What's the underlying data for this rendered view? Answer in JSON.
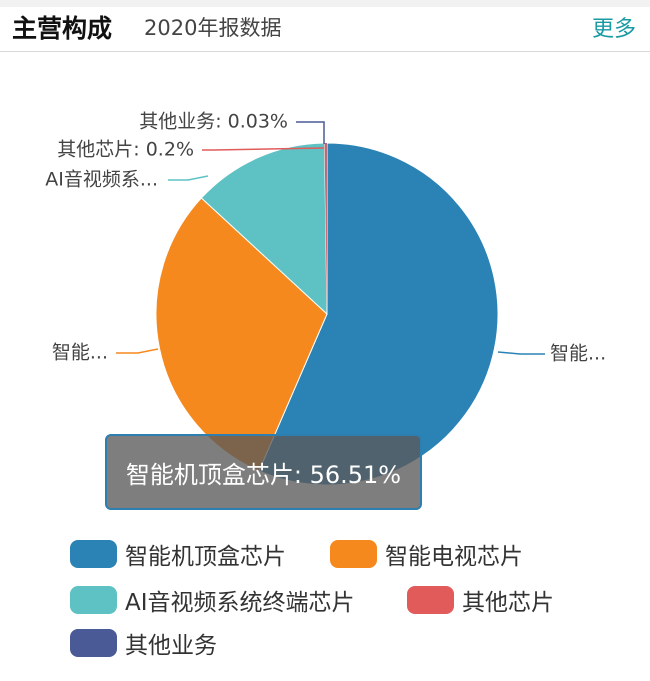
{
  "header": {
    "title": "主营构成",
    "subtitle": "2020年报数据",
    "more_label": "更多"
  },
  "chart_data": {
    "type": "pie",
    "slices": [
      {
        "name": "智能机顶盒芯片",
        "value": 56.51,
        "color": "#2b82b5",
        "callout": "智能..."
      },
      {
        "name": "智能电视芯片",
        "value": 30.36,
        "color": "#f5891e",
        "callout": "智能..."
      },
      {
        "name": "AI音视频系统终端芯片",
        "value": 12.9,
        "color": "#5ec2c4",
        "callout": "AI音视频系..."
      },
      {
        "name": "其他芯片",
        "value": 0.2,
        "color": "#e15b5b",
        "callout": "其他芯片: 0.2%"
      },
      {
        "name": "其他业务",
        "value": 0.03,
        "color": "#4a5a96",
        "callout": "其他业务: 0.03%"
      }
    ],
    "legend_position": "bottom",
    "tooltip": "智能机顶盒芯片: 56.51%"
  }
}
